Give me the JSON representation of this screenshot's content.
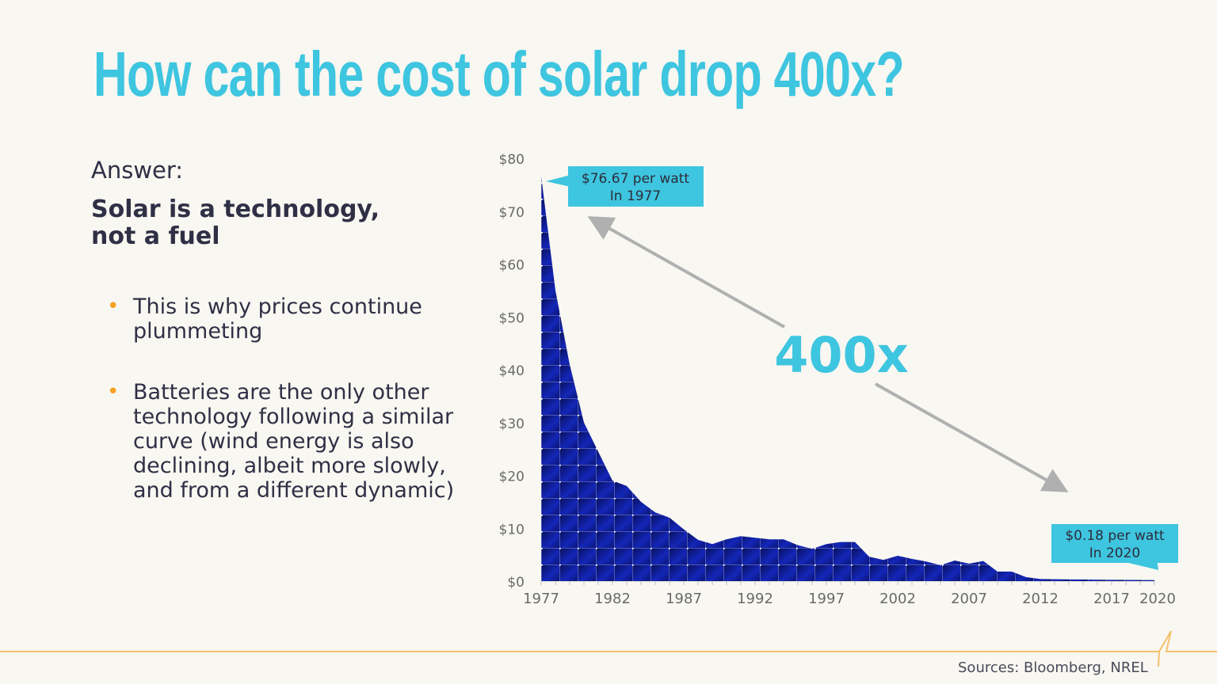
{
  "title": "How can the cost of solar drop 400x?",
  "answer_label": "Answer:",
  "claim": "Solar is a technology, not a fuel",
  "bullets": [
    "This is why prices continue plummeting",
    "Batteries are the only other technology following a similar curve (wind energy is also declining, albeit more slowly, and from a different dynamic)"
  ],
  "sources": "Sources: Bloomberg, NREL",
  "colors": {
    "title": "#3ec5e0",
    "bullet": "#f5a023",
    "area": "#0d1a8a",
    "callout": "#3ec5e0",
    "arrow": "#b0b0b0",
    "footer_line": "#f6c16e"
  },
  "chart_data": {
    "type": "area",
    "title": "",
    "xlabel": "",
    "ylabel": "",
    "xlim": [
      1977,
      2020
    ],
    "ylim": [
      0,
      80
    ],
    "grid": false,
    "x_ticks": [
      "1977",
      "1982",
      "1987",
      "1992",
      "1997",
      "2002",
      "2007",
      "2012",
      "2017",
      "2020"
    ],
    "y_ticks": [
      "$0",
      "$10",
      "$20",
      "$30",
      "$40",
      "$50",
      "$60",
      "$70",
      "$80"
    ],
    "x": [
      1977,
      1978,
      1979,
      1980,
      1981,
      1982,
      1983,
      1984,
      1985,
      1986,
      1987,
      1988,
      1989,
      1990,
      1991,
      1992,
      1993,
      1994,
      1995,
      1996,
      1997,
      1998,
      1999,
      2000,
      2001,
      2002,
      2003,
      2004,
      2005,
      2006,
      2007,
      2008,
      2009,
      2010,
      2011,
      2012,
      2013,
      2014,
      2015,
      2016,
      2017,
      2018,
      2019,
      2020
    ],
    "values": [
      76.67,
      55,
      41,
      30,
      24.5,
      19,
      18,
      15,
      13,
      12,
      9.8,
      7.8,
      7.0,
      7.9,
      8.5,
      8.2,
      7.9,
      7.9,
      6.8,
      6.1,
      7.0,
      7.4,
      7.4,
      4.6,
      4.0,
      4.8,
      4.2,
      3.7,
      3.0,
      3.9,
      3.3,
      3.8,
      1.8,
      1.8,
      0.75,
      0.4,
      0.35,
      0.32,
      0.3,
      0.27,
      0.24,
      0.22,
      0.2,
      0.18
    ],
    "annotations": {
      "start": {
        "line1": "$76.67 per watt",
        "line2": "In 1977"
      },
      "end": {
        "line1": "$0.18 per watt",
        "line2": "In 2020"
      },
      "factor": "400x"
    }
  }
}
